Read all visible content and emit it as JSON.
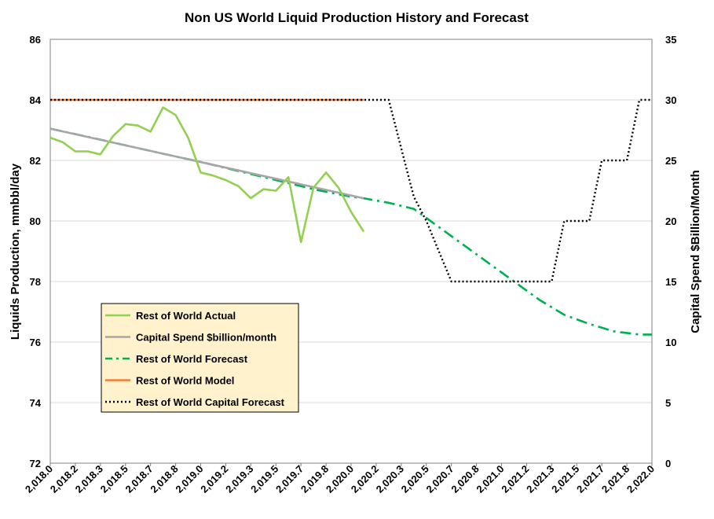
{
  "chart_data": {
    "type": "line",
    "title": "Non US World Liquid Production  History and Forecast",
    "ylabel": "Liquids Production, mmbbl/day",
    "y2label": "Capital Spend $Billion/Month",
    "ylim": [
      72,
      86
    ],
    "y2lim": [
      0,
      35
    ],
    "xlim": [
      2018.0,
      2022.0
    ],
    "grid": true,
    "legend_position": "lower-left",
    "x_tick_labels": [
      "2,018.0",
      "2,018.2",
      "2,018.3",
      "2,018.5",
      "2,018.7",
      "2,018.8",
      "2,019.0",
      "2,019.2",
      "2,019.3",
      "2,019.5",
      "2,019.7",
      "2,019.8",
      "2,020.0",
      "2,020.2",
      "2,020.3",
      "2,020.5",
      "2,020.7",
      "2,020.8",
      "2,021.0",
      "2,021.2",
      "2,021.3",
      "2,021.5",
      "2,021.7",
      "2,021.8",
      "2,022.0"
    ],
    "y_ticks": [
      72,
      74,
      76,
      78,
      80,
      82,
      84,
      86
    ],
    "y2_ticks": [
      0,
      5,
      10,
      15,
      20,
      25,
      30,
      35
    ],
    "series": [
      {
        "name": "Rest of World Actual",
        "axis": "left",
        "color": "#92D050",
        "style": "solid",
        "x": [
          2018.0,
          2018.0833,
          2018.1667,
          2018.25,
          2018.3333,
          2018.4167,
          2018.5,
          2018.5833,
          2018.6667,
          2018.75,
          2018.8333,
          2018.9167,
          2019.0,
          2019.0833,
          2019.1667,
          2019.25,
          2019.3333,
          2019.4167,
          2019.5,
          2019.5833,
          2019.6667,
          2019.75,
          2019.8333,
          2019.9167,
          2020.0,
          2020.0833
        ],
        "y": [
          82.75,
          82.6,
          82.3,
          82.3,
          82.2,
          82.8,
          83.2,
          83.15,
          82.95,
          83.75,
          83.5,
          82.75,
          81.6,
          81.5,
          81.35,
          81.15,
          80.75,
          81.05,
          81.0,
          81.45,
          79.3,
          81.1,
          81.6,
          81.1,
          80.3,
          79.65
        ]
      },
      {
        "name": "Capital Spend $billion/month",
        "axis": "left",
        "color": "#A6A6A6",
        "style": "solid",
        "x": [
          2018.0,
          2020.0833
        ],
        "y": [
          83.05,
          80.75
        ]
      },
      {
        "name": "Rest of World Forecast",
        "axis": "left",
        "color": "#00B050",
        "style": "dashdot",
        "x": [
          2018.0,
          2018.25,
          2018.5,
          2018.75,
          2019.0,
          2019.25,
          2019.5,
          2019.75,
          2020.0,
          2020.0833,
          2020.25,
          2020.4167,
          2020.5833,
          2020.75,
          2020.9167,
          2021.0833,
          2021.25,
          2021.4167,
          2021.5833,
          2021.75,
          2021.9167,
          2022.0
        ],
        "y": [
          83.05,
          82.78,
          82.5,
          82.22,
          81.95,
          81.65,
          81.35,
          81.05,
          80.8,
          80.75,
          80.6,
          80.4,
          79.8,
          79.2,
          78.6,
          78.0,
          77.4,
          76.9,
          76.6,
          76.35,
          76.25,
          76.25
        ]
      },
      {
        "name": "Rest of World Model",
        "axis": "left",
        "color": "#ED7D31",
        "style": "solid",
        "x": [
          2018.0,
          2020.0833
        ],
        "y": [
          84.0,
          84.0
        ]
      },
      {
        "name": "Rest of World Capital Forecast",
        "axis": "right",
        "color": "#000000",
        "style": "dotted",
        "x": [
          2018.0,
          2020.0833,
          2020.25,
          2020.3333,
          2020.4167,
          2020.5,
          2020.5833,
          2020.6667,
          2020.75,
          2021.0,
          2021.25,
          2021.3333,
          2021.4167,
          2021.5,
          2021.5833,
          2021.6667,
          2021.75,
          2021.8333,
          2021.9167,
          2022.0
        ],
        "y": [
          30,
          30,
          30,
          26,
          22,
          20,
          17.5,
          15,
          15,
          15,
          15,
          15,
          20,
          20,
          20,
          25,
          25,
          25,
          30,
          30
        ]
      }
    ]
  }
}
